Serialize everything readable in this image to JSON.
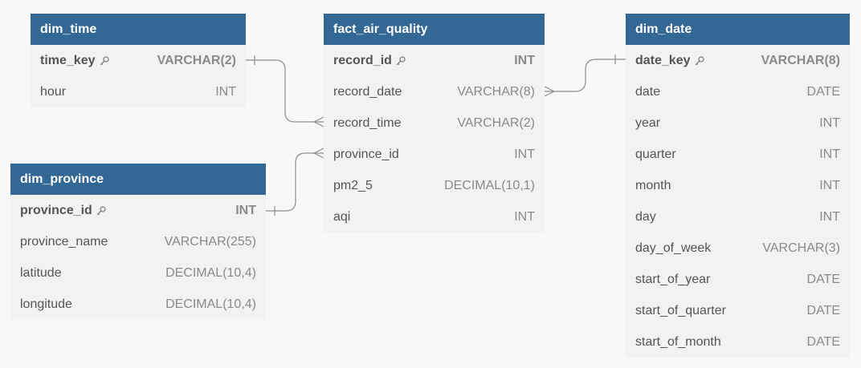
{
  "tables": [
    {
      "id": "dim_time",
      "name": "dim_time",
      "columns": [
        {
          "name": "time_key",
          "type": "VARCHAR(2)",
          "pk": true
        },
        {
          "name": "hour",
          "type": "INT",
          "pk": false
        }
      ]
    },
    {
      "id": "fact_air_quality",
      "name": "fact_air_quality",
      "columns": [
        {
          "name": "record_id",
          "type": "INT",
          "pk": true
        },
        {
          "name": "record_date",
          "type": "VARCHAR(8)",
          "pk": false
        },
        {
          "name": "record_time",
          "type": "VARCHAR(2)",
          "pk": false
        },
        {
          "name": "province_id",
          "type": "INT",
          "pk": false
        },
        {
          "name": "pm2_5",
          "type": "DECIMAL(10,1)",
          "pk": false
        },
        {
          "name": "aqi",
          "type": "INT",
          "pk": false
        }
      ]
    },
    {
      "id": "dim_date",
      "name": "dim_date",
      "columns": [
        {
          "name": "date_key",
          "type": "VARCHAR(8)",
          "pk": true
        },
        {
          "name": "date",
          "type": "DATE",
          "pk": false
        },
        {
          "name": "year",
          "type": "INT",
          "pk": false
        },
        {
          "name": "quarter",
          "type": "INT",
          "pk": false
        },
        {
          "name": "month",
          "type": "INT",
          "pk": false
        },
        {
          "name": "day",
          "type": "INT",
          "pk": false
        },
        {
          "name": "day_of_week",
          "type": "VARCHAR(3)",
          "pk": false
        },
        {
          "name": "start_of_year",
          "type": "DATE",
          "pk": false
        },
        {
          "name": "start_of_quarter",
          "type": "DATE",
          "pk": false
        },
        {
          "name": "start_of_month",
          "type": "DATE",
          "pk": false
        }
      ]
    },
    {
      "id": "dim_province",
      "name": "dim_province",
      "columns": [
        {
          "name": "province_id",
          "type": "INT",
          "pk": true
        },
        {
          "name": "province_name",
          "type": "VARCHAR(255)",
          "pk": false
        },
        {
          "name": "latitude",
          "type": "DECIMAL(10,4)",
          "pk": false
        },
        {
          "name": "longitude",
          "type": "DECIMAL(10,4)",
          "pk": false
        }
      ]
    }
  ],
  "relationships": [
    {
      "from_table": "dim_time",
      "from_column": "time_key",
      "to_table": "fact_air_quality",
      "to_column": "record_time",
      "cardinality": "one-to-many"
    },
    {
      "from_table": "dim_date",
      "from_column": "date_key",
      "to_table": "fact_air_quality",
      "to_column": "record_date",
      "cardinality": "one-to-many"
    },
    {
      "from_table": "dim_province",
      "from_column": "province_id",
      "to_table": "fact_air_quality",
      "to_column": "province_id",
      "cardinality": "one-to-many"
    }
  ],
  "icons": {
    "primary_key": "key-icon"
  },
  "colors": {
    "header": "#336794",
    "table_body": "#f2f2f2",
    "canvas": "#f8f8f8"
  }
}
